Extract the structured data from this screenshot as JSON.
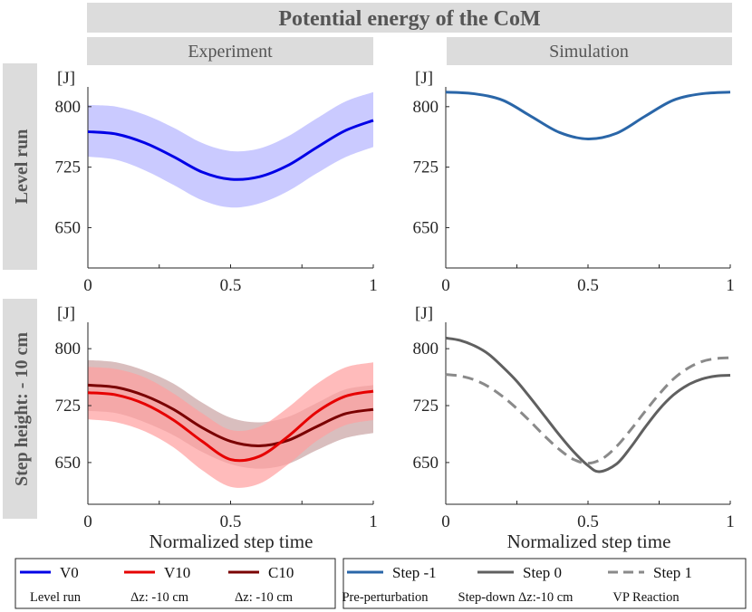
{
  "title": "Potential energy of the CoM",
  "column_headers": [
    "Experiment",
    "Simulation"
  ],
  "row_headers": [
    "Level  run",
    "Step height: - 10 cm"
  ],
  "unit_label": "[J]",
  "xlabel": "Normalized step time",
  "colors": {
    "V0": "#0000e6",
    "V10": "#e60000",
    "C10": "#7a0000",
    "step_m1": "#2a66a8",
    "step_0": "#606060",
    "step_1": "#8a8a8a",
    "band_V0": "#b3b3ff",
    "band_V10": "#ff9e9e",
    "band_C10": "#c9a3a3"
  },
  "legend_left": [
    {
      "label": "V0",
      "sub": "Level run",
      "color": "#0000e6",
      "dash": "solid"
    },
    {
      "label": "V10",
      "sub": "Δz: -10 cm",
      "color": "#e60000",
      "dash": "solid"
    },
    {
      "label": "C10",
      "sub": "Δz: -10 cm",
      "color": "#7a0000",
      "dash": "solid"
    }
  ],
  "legend_right": [
    {
      "label": "Step -1",
      "sub": "Pre-perturbation",
      "color": "#2a66a8",
      "dash": "solid"
    },
    {
      "label": "Step 0",
      "sub": "Step-down Δz:-10 cm",
      "color": "#606060",
      "dash": "solid"
    },
    {
      "label": "Step 1",
      "sub": "VP Reaction",
      "color": "#8a8a8a",
      "dash": "dashed"
    }
  ],
  "chart_data": [
    {
      "id": "level-experiment",
      "type": "line",
      "title": "Experiment",
      "row": "Level  run",
      "xlabel": "",
      "ylabel": "[J]",
      "xlim": [
        0,
        1
      ],
      "ylim": [
        600,
        820
      ],
      "xticks": [
        0,
        0.5,
        1
      ],
      "yticks": [
        650,
        725,
        800
      ],
      "x": [
        0,
        0.1,
        0.2,
        0.3,
        0.4,
        0.5,
        0.6,
        0.7,
        0.8,
        0.9,
        1.0
      ],
      "series": [
        {
          "name": "V0",
          "color": "#0000e6",
          "values": [
            769,
            766,
            755,
            738,
            719,
            710,
            713,
            727,
            749,
            770,
            783
          ],
          "band_lower": [
            738,
            734,
            721,
            703,
            684,
            675,
            680,
            695,
            717,
            737,
            750
          ],
          "band_upper": [
            802,
            800,
            790,
            774,
            755,
            745,
            748,
            763,
            785,
            806,
            818
          ]
        }
      ]
    },
    {
      "id": "level-simulation",
      "type": "line",
      "title": "Simulation",
      "row": "Level  run",
      "xlabel": "",
      "ylabel": "[J]",
      "xlim": [
        0,
        1
      ],
      "ylim": [
        600,
        820
      ],
      "xticks": [
        0,
        0.5,
        1
      ],
      "yticks": [
        650,
        725,
        800
      ],
      "x": [
        0,
        0.1,
        0.2,
        0.3,
        0.4,
        0.5,
        0.6,
        0.7,
        0.8,
        0.9,
        1.0
      ],
      "series": [
        {
          "name": "Step -1",
          "color": "#2a66a8",
          "values": [
            818,
            816,
            808,
            788,
            768,
            760,
            767,
            788,
            808,
            816,
            818
          ]
        }
      ]
    },
    {
      "id": "step-experiment",
      "type": "line",
      "title": "Experiment",
      "row": "Step height: - 10 cm",
      "xlabel": "Normalized step time",
      "ylabel": "[J]",
      "xlim": [
        0,
        1
      ],
      "ylim": [
        595,
        830
      ],
      "xticks": [
        0,
        0.5,
        1
      ],
      "yticks": [
        650,
        725,
        800
      ],
      "x": [
        0,
        0.1,
        0.2,
        0.3,
        0.4,
        0.5,
        0.6,
        0.7,
        0.8,
        0.9,
        1.0
      ],
      "series": [
        {
          "name": "C10",
          "color": "#7a0000",
          "values": [
            752,
            749,
            738,
            720,
            696,
            678,
            672,
            679,
            697,
            714,
            720
          ],
          "band_lower": [
            718,
            715,
            703,
            686,
            664,
            648,
            642,
            648,
            666,
            682,
            689
          ],
          "band_upper": [
            785,
            782,
            771,
            754,
            729,
            709,
            703,
            710,
            728,
            746,
            752
          ]
        },
        {
          "name": "V10",
          "color": "#e60000",
          "values": [
            742,
            739,
            727,
            706,
            678,
            654,
            658,
            684,
            716,
            737,
            744
          ],
          "band_lower": [
            707,
            703,
            691,
            670,
            640,
            618,
            622,
            647,
            678,
            699,
            706
          ],
          "band_upper": [
            776,
            773,
            762,
            741,
            715,
            693,
            697,
            722,
            753,
            775,
            782
          ]
        }
      ]
    },
    {
      "id": "step-simulation",
      "type": "line",
      "title": "Simulation",
      "row": "Step height: - 10 cm",
      "xlabel": "Normalized step time",
      "ylabel": "[J]",
      "xlim": [
        0,
        1
      ],
      "ylim": [
        595,
        830
      ],
      "xticks": [
        0,
        0.5,
        1
      ],
      "yticks": [
        650,
        725,
        800
      ],
      "x": [
        0,
        0.1,
        0.2,
        0.3,
        0.4,
        0.5,
        0.6,
        0.7,
        0.8,
        0.9,
        1.0
      ],
      "series": [
        {
          "name": "Step 0",
          "color": "#606060",
          "dash": "solid",
          "x": [
            0,
            0.05,
            0.1,
            0.15,
            0.2,
            0.25,
            0.3,
            0.35,
            0.4,
            0.45,
            0.5,
            0.54,
            0.6,
            0.65,
            0.7,
            0.75,
            0.8,
            0.85,
            0.9,
            0.95,
            1.0
          ],
          "values": [
            814,
            811,
            804,
            793,
            776,
            757,
            734,
            710,
            686,
            664,
            646,
            638,
            648,
            670,
            696,
            720,
            739,
            752,
            760,
            764,
            765
          ]
        },
        {
          "name": "Step 1",
          "color": "#8a8a8a",
          "dash": "dashed",
          "x": [
            0,
            0.05,
            0.1,
            0.15,
            0.2,
            0.25,
            0.3,
            0.35,
            0.4,
            0.45,
            0.5,
            0.55,
            0.6,
            0.65,
            0.7,
            0.75,
            0.8,
            0.85,
            0.9,
            0.95,
            1.0
          ],
          "values": [
            766,
            764,
            759,
            750,
            737,
            721,
            703,
            684,
            667,
            654,
            649,
            655,
            671,
            693,
            717,
            740,
            760,
            774,
            783,
            787,
            788
          ]
        }
      ]
    }
  ]
}
